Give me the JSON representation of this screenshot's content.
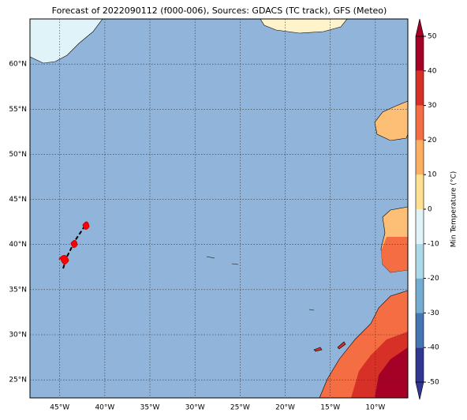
{
  "title": "Forecast of 2022090112 (f000-006), Sources: GDACS (TC track), GFS (Meteo)",
  "map": {
    "xlim": [
      -48.3,
      -6.4
    ],
    "ylim": [
      23,
      65
    ],
    "xticks": [
      {
        "value": -45,
        "label": "45°W"
      },
      {
        "value": -40,
        "label": "40°W"
      },
      {
        "value": -35,
        "label": "35°W"
      },
      {
        "value": -30,
        "label": "30°W"
      },
      {
        "value": -25,
        "label": "25°W"
      },
      {
        "value": -20,
        "label": "20°W"
      },
      {
        "value": -15,
        "label": "15°W"
      },
      {
        "value": -10,
        "label": "10°W"
      }
    ],
    "yticks": [
      {
        "value": 60,
        "label": "60°N"
      },
      {
        "value": 55,
        "label": "55°N"
      },
      {
        "value": 50,
        "label": "50°N"
      },
      {
        "value": 45,
        "label": "45°N"
      },
      {
        "value": 40,
        "label": "40°N"
      },
      {
        "value": 35,
        "label": "35°N"
      },
      {
        "value": 30,
        "label": "30°N"
      },
      {
        "value": 25,
        "label": "25°N"
      }
    ],
    "grid": true
  },
  "colorbar": {
    "label": "Min Temperature (°C)",
    "ticks": [
      -50,
      -40,
      -30,
      -20,
      -10,
      0,
      10,
      20,
      30,
      40,
      50
    ],
    "colors": [
      "#313695",
      "#4575b4",
      "#74add1",
      "#abd9e9",
      "#e0f3f8",
      "#fee090",
      "#fdae61",
      "#f46d43",
      "#d73027",
      "#a50026"
    ]
  }
}
